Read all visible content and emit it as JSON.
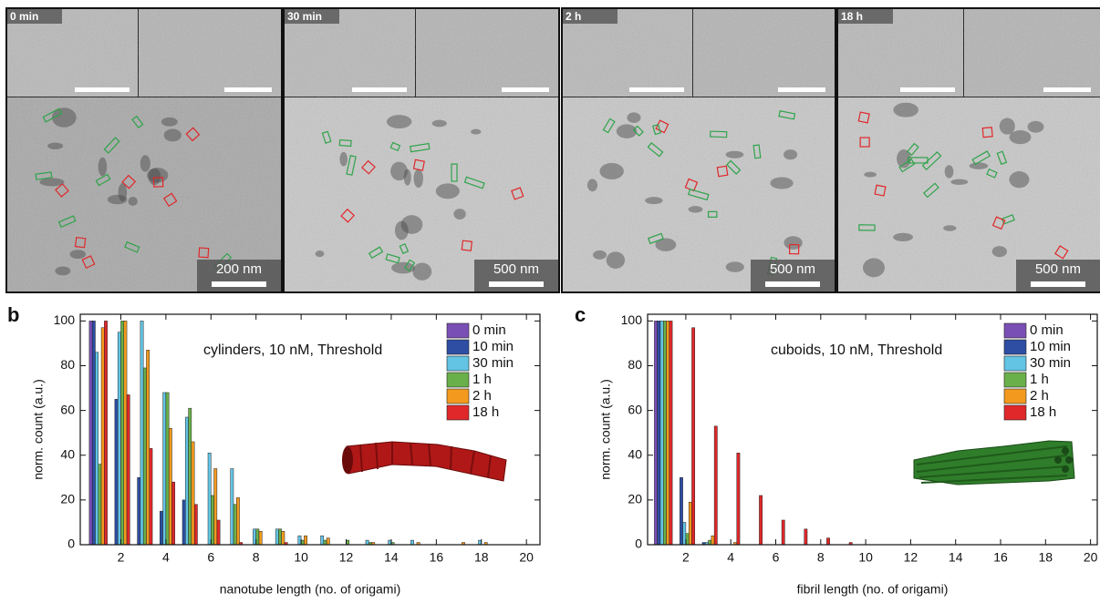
{
  "micrographs": [
    {
      "label": "0 min",
      "scale_bar": "200 nm"
    },
    {
      "label": "30 min",
      "scale_bar": "500 nm"
    },
    {
      "label": "2 h",
      "scale_bar": "500 nm"
    },
    {
      "label": "18 h",
      "scale_bar": "500 nm"
    }
  ],
  "chart_data": [
    {
      "type": "bar",
      "panel": "b",
      "annotation": "cylinders, 10 nM, Threshold",
      "x_label": "nanotube length (no. of origami)",
      "y_label": "norm. count (a.u.)",
      "x": [
        1,
        2,
        3,
        4,
        5,
        6,
        7,
        8,
        9,
        10,
        11,
        12,
        13,
        14,
        15,
        16,
        17,
        18,
        19
      ],
      "series": [
        {
          "name": "0 min",
          "color": "#7a4fb5",
          "values": [
            100,
            0,
            0,
            0,
            0,
            0,
            0,
            0,
            0,
            0,
            0,
            0,
            0,
            0,
            0,
            0,
            0,
            0,
            0
          ]
        },
        {
          "name": "10 min",
          "color": "#2d4ea3",
          "values": [
            100,
            65,
            30,
            15,
            20,
            0,
            0,
            0,
            0,
            0,
            0,
            0,
            0,
            0,
            0,
            0,
            0,
            0,
            0
          ]
        },
        {
          "name": "30 min",
          "color": "#63c4e4",
          "values": [
            86,
            95,
            100,
            68,
            57,
            41,
            34,
            7,
            7,
            4,
            4,
            0,
            2,
            2,
            2,
            0,
            0,
            2,
            0
          ]
        },
        {
          "name": "1 h",
          "color": "#6ab04a",
          "values": [
            36,
            100,
            79,
            68,
            61,
            22,
            18,
            7,
            7,
            2,
            2,
            2,
            1,
            1,
            0,
            0,
            0,
            0,
            0
          ]
        },
        {
          "name": "2 h",
          "color": "#f39a1e",
          "values": [
            97,
            100,
            87,
            52,
            46,
            34,
            21,
            6,
            6,
            4,
            3,
            0,
            1,
            0,
            1,
            0,
            1,
            1,
            0
          ]
        },
        {
          "name": "18 h",
          "color": "#e0282a",
          "values": [
            100,
            67,
            43,
            28,
            18,
            11,
            1,
            0,
            1,
            0,
            0,
            0,
            0,
            0,
            0,
            0,
            0,
            0,
            0
          ]
        }
      ],
      "xlim": [
        0.2,
        20.6
      ],
      "xticks": [
        2,
        4,
        6,
        8,
        10,
        12,
        14,
        16,
        18,
        20
      ],
      "ylim": [
        0,
        103
      ],
      "yticks": [
        0,
        20,
        40,
        60,
        80,
        100
      ],
      "legend": "upper right"
    },
    {
      "type": "bar",
      "panel": "c",
      "annotation": "cuboids, 10 nM, Threshold",
      "x_label": "fibril length (no. of origami)",
      "y_label": "norm. count (a.u.)",
      "x": [
        1,
        2,
        3,
        4,
        5,
        6,
        7,
        8,
        9,
        10,
        11,
        12,
        13,
        14,
        15,
        16,
        17,
        18,
        19
      ],
      "series": [
        {
          "name": "0 min",
          "color": "#7a4fb5",
          "values": [
            100,
            0,
            0,
            0,
            0,
            0,
            0,
            0,
            0,
            0,
            0,
            0,
            0,
            0,
            0,
            0,
            0,
            0,
            0
          ]
        },
        {
          "name": "10 min",
          "color": "#2d4ea3",
          "values": [
            100,
            30,
            1,
            0,
            0,
            0,
            0,
            0,
            0,
            0,
            0,
            0,
            0,
            0,
            0,
            0,
            0,
            0,
            0
          ]
        },
        {
          "name": "30 min",
          "color": "#63c4e4",
          "values": [
            100,
            10,
            1,
            0,
            0,
            0,
            0,
            0,
            0,
            0,
            0,
            0,
            0,
            0,
            0,
            0,
            0,
            0,
            0
          ]
        },
        {
          "name": "1 h",
          "color": "#6ab04a",
          "values": [
            100,
            5,
            2,
            0,
            0,
            0,
            0,
            0,
            0,
            0,
            0,
            0,
            0,
            0,
            0,
            0,
            0,
            0,
            0
          ]
        },
        {
          "name": "2 h",
          "color": "#f39a1e",
          "values": [
            100,
            19,
            4,
            1,
            0,
            0,
            0,
            0,
            0,
            0,
            0,
            0,
            0,
            0,
            0,
            0,
            0,
            0,
            0
          ]
        },
        {
          "name": "18 h",
          "color": "#e0282a",
          "values": [
            100,
            97,
            53,
            41,
            22,
            11,
            7,
            3,
            1,
            0,
            0,
            0,
            0,
            0,
            0,
            0,
            0,
            0,
            0
          ]
        }
      ],
      "xlim": [
        0.3,
        20.3
      ],
      "xticks": [
        2,
        4,
        6,
        8,
        10,
        12,
        14,
        16,
        18,
        20
      ],
      "ylim": [
        0,
        103
      ],
      "yticks": [
        0,
        20,
        40,
        60,
        80,
        100
      ],
      "legend": "upper right"
    }
  ]
}
